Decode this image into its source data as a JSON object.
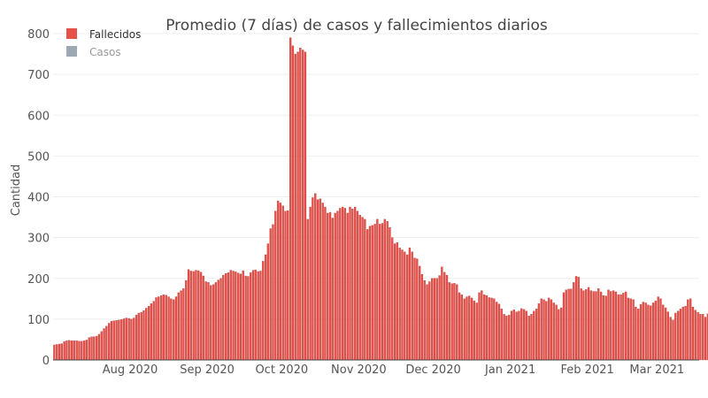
{
  "chart_data": {
    "type": "bar",
    "title": "Promedio (7 días) de casos y fallecimientos diarios",
    "xlabel": "",
    "ylabel": "Cantidad",
    "ylim": [
      0,
      800
    ],
    "yticks": [
      0,
      100,
      200,
      300,
      400,
      500,
      600,
      700,
      800
    ],
    "x_start_date": "2020-07-01",
    "x_end_date": "2021-03-17",
    "x_tick_labels": [
      {
        "date": "2020-08-01",
        "label": "Aug 2020"
      },
      {
        "date": "2020-09-01",
        "label": "Sep 2020"
      },
      {
        "date": "2020-10-01",
        "label": "Oct 2020"
      },
      {
        "date": "2020-11-01",
        "label": "Nov 2020"
      },
      {
        "date": "2020-12-01",
        "label": "Dec 2020"
      },
      {
        "date": "2021-01-01",
        "label": "Jan 2021"
      },
      {
        "date": "2021-02-01",
        "label": "Feb 2021"
      },
      {
        "date": "2021-03-01",
        "label": "Mar 2021"
      }
    ],
    "grid": true,
    "legend_position": "top-left",
    "series": [
      {
        "name": "Fallecidos",
        "color": "#e8504a",
        "visible": true,
        "values": [
          37,
          38,
          39,
          40,
          45,
          47,
          48,
          47,
          47,
          47,
          46,
          46,
          47,
          49,
          55,
          57,
          57,
          58,
          63,
          70,
          77,
          83,
          90,
          95,
          96,
          97,
          98,
          99,
          101,
          103,
          102,
          100,
          103,
          110,
          115,
          117,
          121,
          127,
          132,
          138,
          144,
          153,
          155,
          158,
          160,
          159,
          155,
          150,
          148,
          155,
          165,
          170,
          175,
          195,
          222,
          218,
          217,
          220,
          219,
          215,
          206,
          192,
          190,
          183,
          185,
          190,
          196,
          200,
          208,
          212,
          214,
          220,
          218,
          216,
          213,
          211,
          219,
          206,
          205,
          214,
          220,
          221,
          217,
          218,
          242,
          258,
          285,
          322,
          332,
          365,
          390,
          385,
          378,
          365,
          366,
          790,
          770,
          750,
          755,
          765,
          760,
          755,
          345,
          375,
          398,
          408,
          393,
          395,
          385,
          375,
          360,
          362,
          348,
          360,
          365,
          372,
          375,
          372,
          360,
          375,
          370,
          375,
          365,
          355,
          350,
          345,
          320,
          328,
          330,
          333,
          345,
          333,
          335,
          345,
          340,
          325,
          300,
          285,
          288,
          275,
          270,
          265,
          258,
          275,
          265,
          250,
          248,
          230,
          210,
          195,
          185,
          192,
          200,
          200,
          200,
          207,
          228,
          215,
          208,
          190,
          187,
          188,
          185,
          165,
          160,
          150,
          155,
          157,
          152,
          145,
          140,
          165,
          170,
          160,
          158,
          153,
          152,
          150,
          142,
          137,
          125,
          112,
          108,
          110,
          120,
          123,
          118,
          120,
          126,
          124,
          120,
          108,
          112,
          120,
          125,
          138,
          150,
          148,
          144,
          152,
          148,
          140,
          135,
          124,
          128,
          165,
          172,
          174,
          174,
          190,
          205,
          203,
          175,
          170,
          173,
          178,
          170,
          168,
          168,
          175,
          167,
          158,
          157,
          172,
          168,
          170,
          167,
          160,
          160,
          164,
          167,
          152,
          150,
          148,
          130,
          125,
          136,
          142,
          140,
          135,
          133,
          140,
          145,
          155,
          150,
          135,
          128,
          118,
          105,
          98,
          115,
          120,
          125,
          130,
          132,
          148,
          150,
          130,
          122,
          117,
          112,
          112,
          105,
          113
        ]
      },
      {
        "name": "Casos",
        "color": "#9ca8b4",
        "visible": false,
        "values": []
      }
    ]
  }
}
